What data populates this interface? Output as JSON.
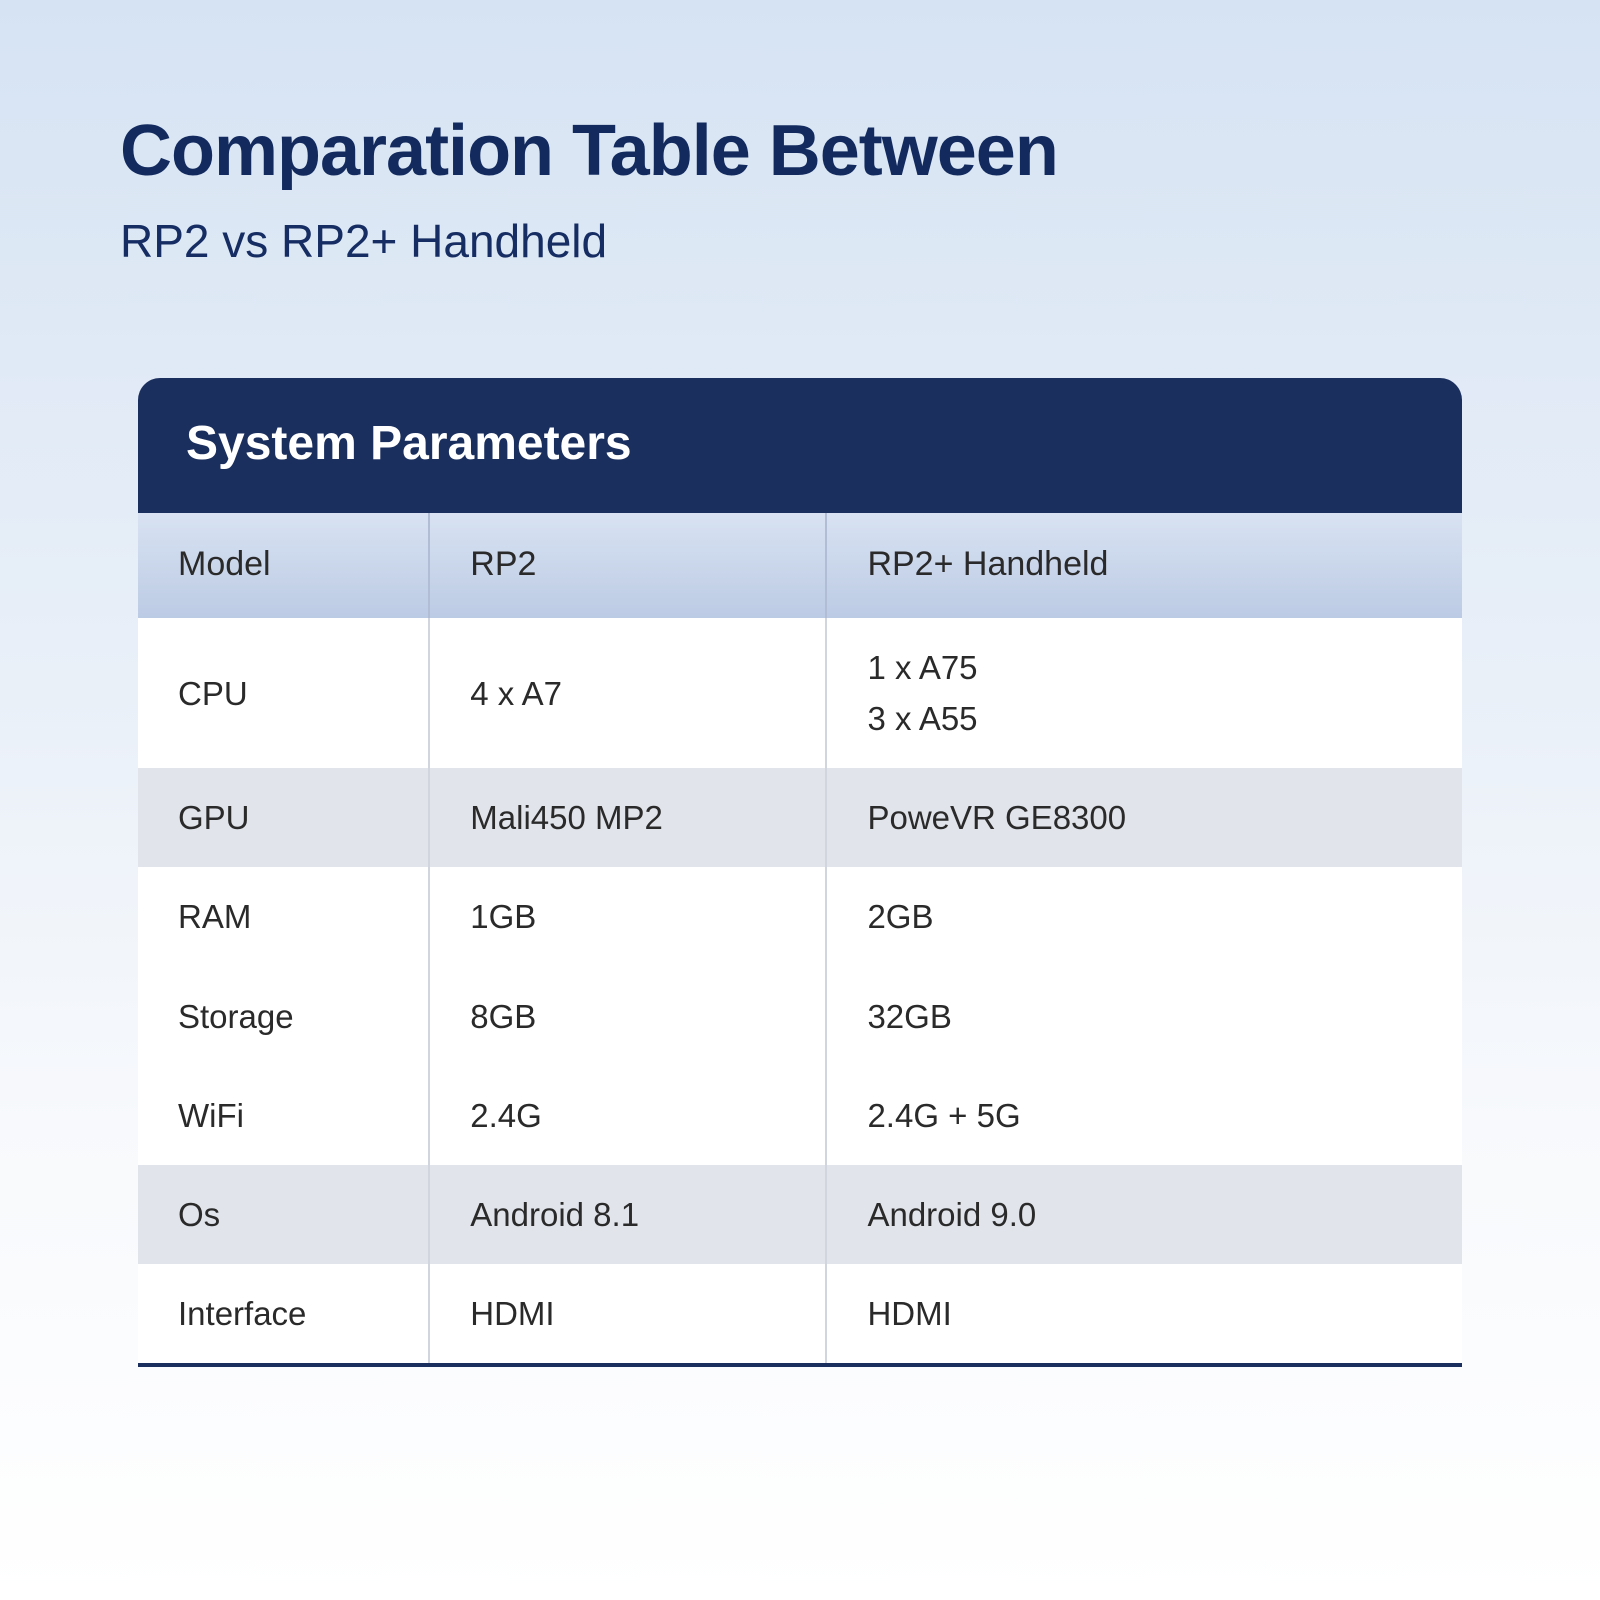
{
  "header": {
    "title": "Comparation Table Between",
    "subtitle": "RP2 vs RP2+ Handheld"
  },
  "table": {
    "type": "table",
    "title": "System Parameters",
    "columns": [
      "Model",
      "RP2",
      "RP2+ Handheld"
    ],
    "column_widths_pct": [
      22,
      30,
      48
    ],
    "rows": [
      {
        "label": "CPU",
        "col1": "4 x A7",
        "col2": "1 x A75\n3 x A55",
        "alt": false
      },
      {
        "label": "GPU",
        "col1": "Mali450 MP2",
        "col2": "PoweVR GE8300",
        "alt": true
      },
      {
        "label": "RAM",
        "col1": "1GB",
        "col2": "2GB",
        "alt": false
      },
      {
        "label": "Storage",
        "col1": "8GB",
        "col2": "32GB",
        "alt": false
      },
      {
        "label": "WiFi",
        "col1": "2.4G",
        "col2": "2.4G + 5G",
        "alt": false
      },
      {
        "label": "Os",
        "col1": "Android 8.1",
        "col2": "Android 9.0",
        "alt": true
      },
      {
        "label": "Interface",
        "col1": "HDMI",
        "col2": "HDMI",
        "alt": false
      }
    ],
    "colors": {
      "header_bar_bg": "#1b2f5e",
      "header_bar_text": "#ffffff",
      "head_row_grad_top": "#d8e2f2",
      "head_row_grad_bottom": "#bccbe4",
      "row_bg": "#ffffff",
      "row_alt_bg": "#e1e4eb",
      "cell_border": "#d0d5de",
      "text": "#2a2a2a",
      "bottom_border": "#1b2f5e"
    },
    "typography": {
      "title_fontsize": 48,
      "head_row_fontsize": 34,
      "body_fontsize": 33,
      "font_family": "Arial"
    },
    "border_radius": 22
  },
  "page": {
    "background_gradient": [
      "#d6e3f3",
      "#e8eff8",
      "#f7f9fc",
      "#ffffff"
    ],
    "title_color": "#122a5e",
    "title_fontsize": 72,
    "subtitle_fontsize": 46
  }
}
